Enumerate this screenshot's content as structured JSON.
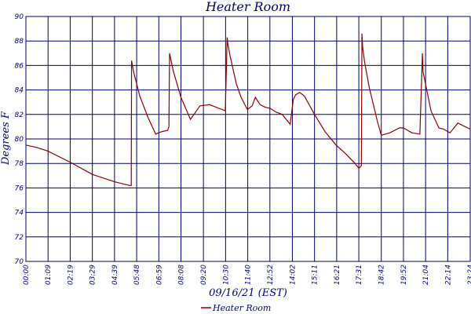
{
  "colors": {
    "text": "#00007a",
    "grid": "#00006b",
    "series": "#8b0000",
    "background": "#ffffff"
  },
  "chart_data": {
    "type": "line",
    "title": "Heater Room",
    "xlabel": "09/16/21 (EST)",
    "ylabel": "Degrees F",
    "ylim": [
      70,
      90
    ],
    "yticks": [
      70,
      72,
      74,
      76,
      78,
      80,
      82,
      84,
      86,
      88,
      90
    ],
    "ytick_labels": [
      "70",
      "72",
      "74",
      "76",
      "78",
      "80",
      "82",
      "84",
      "86",
      "88",
      "90"
    ],
    "xlim": [
      "00:00",
      "23:24"
    ],
    "xtick_labels": [
      "00:00",
      "01:09",
      "02:19",
      "03:29",
      "04:39",
      "05:48",
      "06:59",
      "08:08",
      "09:20",
      "10:30",
      "11:40",
      "12:52",
      "14:02",
      "15:11",
      "16:21",
      "17:31",
      "18:42",
      "19:52",
      "21:04",
      "22:14",
      "23:24"
    ],
    "xtick_values": [
      "00:00",
      "01:10",
      "02:20",
      "03:30",
      "04:40",
      "05:50",
      "07:00",
      "08:10",
      "09:21",
      "10:31",
      "11:41",
      "12:51",
      "14:02",
      "15:12",
      "16:22",
      "17:32",
      "18:43",
      "19:53",
      "21:03",
      "22:13",
      "23:24"
    ],
    "grid": true,
    "legend_position": "bottom-center",
    "series": [
      {
        "name": "Heater Room",
        "x": [
          "00:00",
          "00:35",
          "01:10",
          "02:20",
          "03:30",
          "04:40",
          "05:28",
          "05:33",
          "05:34",
          "05:40",
          "06:00",
          "06:25",
          "06:50",
          "07:10",
          "07:28",
          "07:32",
          "07:34",
          "07:45",
          "08:10",
          "08:40",
          "09:10",
          "09:40",
          "10:10",
          "10:30",
          "10:36",
          "10:38",
          "10:45",
          "11:05",
          "11:20",
          "11:40",
          "11:55",
          "12:05",
          "12:20",
          "12:35",
          "12:52",
          "13:10",
          "13:30",
          "13:55",
          "14:05",
          "14:12",
          "14:25",
          "14:40",
          "15:12",
          "15:45",
          "16:20",
          "16:50",
          "17:20",
          "17:32",
          "17:40",
          "17:42",
          "17:44",
          "17:50",
          "18:05",
          "18:30",
          "18:43",
          "19:10",
          "19:40",
          "19:53",
          "20:20",
          "20:45",
          "20:53",
          "20:55",
          "21:05",
          "21:20",
          "21:45",
          "22:00",
          "22:20",
          "22:45",
          "23:00",
          "23:24"
        ],
        "y": [
          79.5,
          79.3,
          79.0,
          78.1,
          77.1,
          76.5,
          76.2,
          76.2,
          86.4,
          85.5,
          83.5,
          81.8,
          80.4,
          80.6,
          80.7,
          81.0,
          87.0,
          85.6,
          83.4,
          81.6,
          82.7,
          82.8,
          82.5,
          82.3,
          88.3,
          87.8,
          86.8,
          84.5,
          83.4,
          82.4,
          82.7,
          83.4,
          82.8,
          82.6,
          82.5,
          82.2,
          82.0,
          81.2,
          83.2,
          83.6,
          83.8,
          83.5,
          82.0,
          80.6,
          79.5,
          78.8,
          78.0,
          77.6,
          77.8,
          88.6,
          87.5,
          86.3,
          84.2,
          81.5,
          80.3,
          80.5,
          80.9,
          80.9,
          80.5,
          80.4,
          87.0,
          85.5,
          84.2,
          82.3,
          80.9,
          80.8,
          80.5,
          81.3,
          81.1,
          80.8
        ]
      }
    ]
  }
}
